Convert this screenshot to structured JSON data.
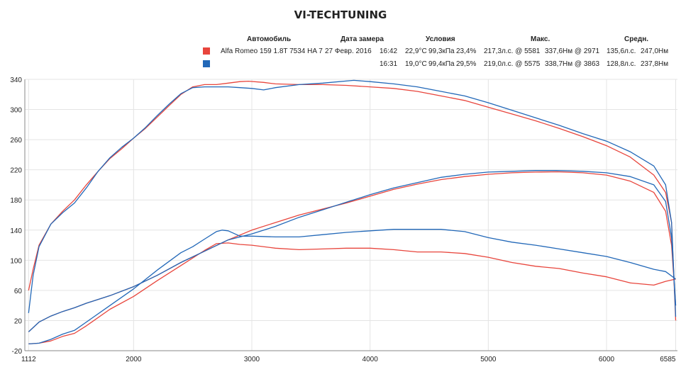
{
  "title": "VI-TECHTUNING",
  "legend": {
    "headers": {
      "car": "Автомобиль",
      "date": "Дата замера",
      "conditions": "Условия",
      "max": "Макс.",
      "avg": "Средн."
    },
    "rows": [
      {
        "color": "#e8453c",
        "car": "Alfa Romeo 159 1.8T 7534 HA 7",
        "date": "27 Февр. 2016",
        "time": "16:42",
        "temp": "22,9°C",
        "pressure": "99,3кПа",
        "humidity": "23,4%",
        "max_power": "217,3л.с. @ 5581",
        "max_torque": "337,6Нм @ 2971",
        "avg_power": "135,6л.с.",
        "avg_torque": "247,0Нм"
      },
      {
        "color": "#2268b8",
        "car": "",
        "date": "",
        "time": "16:31",
        "temp": "19,0°C",
        "pressure": "99,4кПа",
        "humidity": "29,5%",
        "max_power": "219,0л.с. @ 5575",
        "max_torque": "338,7Нм @ 3863",
        "avg_power": "128,8л.с.",
        "avg_torque": "237,8Нм"
      }
    ]
  },
  "chart_data": {
    "type": "line",
    "xlabel": "",
    "ylabel": "",
    "xlim": [
      1080,
      6600
    ],
    "ylim": [
      -20,
      340
    ],
    "xticks": [
      1112,
      2000,
      3000,
      4000,
      5000,
      6000,
      6585
    ],
    "yticks": [
      -20,
      20,
      60,
      100,
      140,
      180,
      220,
      260,
      300,
      340
    ],
    "grid": true,
    "series": [
      {
        "color": "#e8453c",
        "x": [
          1112,
          1150,
          1200,
          1300,
          1400,
          1500,
          1600,
          1700,
          1800,
          1900,
          2000,
          2100,
          2200,
          2300,
          2400,
          2500,
          2600,
          2700,
          2800,
          2900,
          2971,
          3100,
          3200,
          3400,
          3600,
          3800,
          4000,
          4200,
          4400,
          4600,
          4800,
          5000,
          5200,
          5400,
          5600,
          5800,
          6000,
          6200,
          6400,
          6500,
          6550,
          6585
        ],
        "values": [
          60,
          88,
          120,
          148,
          165,
          180,
          200,
          218,
          235,
          248,
          262,
          275,
          290,
          305,
          320,
          330,
          333,
          333,
          335,
          337,
          337.6,
          336,
          334,
          333,
          333,
          332,
          330,
          328,
          324,
          318,
          312,
          303,
          294,
          285,
          275,
          264,
          252,
          237,
          213,
          190,
          150,
          20
        ]
      },
      {
        "color": "#e8453c",
        "x": [
          1112,
          1200,
          1300,
          1400,
          1500,
          1600,
          1800,
          2000,
          2200,
          2400,
          2600,
          2800,
          3000,
          3200,
          3400,
          3600,
          3800,
          4000,
          4200,
          4400,
          4600,
          4800,
          5000,
          5200,
          5400,
          5581,
          5800,
          6000,
          6200,
          6400,
          6500,
          6550,
          6585
        ],
        "values": [
          5,
          18,
          26,
          32,
          37,
          43,
          53,
          65,
          80,
          97,
          112,
          127,
          140,
          150,
          160,
          168,
          176,
          185,
          194,
          201,
          207,
          211,
          214,
          216,
          217,
          217.3,
          216,
          213,
          205,
          190,
          165,
          120,
          40
        ]
      },
      {
        "color": "#e8453c",
        "x": [
          1112,
          1200,
          1300,
          1400,
          1500,
          1600,
          1800,
          2000,
          2200,
          2400,
          2600,
          2700,
          2800,
          2900,
          3000,
          3200,
          3400,
          3600,
          3800,
          4000,
          4200,
          4400,
          4600,
          4800,
          5000,
          5200,
          5400,
          5600,
          5800,
          6000,
          6200,
          6400,
          6500,
          6585
        ],
        "values": [
          -11,
          -10,
          -7,
          -1,
          3,
          13,
          35,
          52,
          73,
          93,
          113,
          122,
          123,
          121,
          120,
          116,
          114,
          115,
          116,
          116,
          114,
          111,
          111,
          109,
          104,
          97,
          92,
          89,
          83,
          78,
          70,
          67,
          72,
          75
        ]
      },
      {
        "color": "#2268b8",
        "x": [
          1112,
          1150,
          1200,
          1300,
          1400,
          1500,
          1600,
          1700,
          1800,
          1900,
          2000,
          2100,
          2200,
          2300,
          2400,
          2500,
          2600,
          2700,
          2800,
          2900,
          3000,
          3100,
          3200,
          3400,
          3600,
          3863,
          4000,
          4200,
          4400,
          4600,
          4800,
          5000,
          5200,
          5400,
          5600,
          5800,
          6000,
          6200,
          6400,
          6500,
          6550,
          6585
        ],
        "values": [
          30,
          80,
          118,
          148,
          163,
          176,
          196,
          218,
          236,
          250,
          262,
          276,
          292,
          307,
          321,
          329,
          330,
          330,
          330,
          329,
          328,
          326,
          329,
          333,
          335,
          338.7,
          337,
          334,
          330,
          324,
          318,
          309,
          299,
          289,
          279,
          268,
          258,
          244,
          225,
          200,
          150,
          25
        ]
      },
      {
        "color": "#2268b8",
        "x": [
          1112,
          1200,
          1300,
          1400,
          1500,
          1600,
          1800,
          2000,
          2200,
          2400,
          2600,
          2800,
          3000,
          3200,
          3400,
          3600,
          3800,
          4000,
          4200,
          4400,
          4600,
          4800,
          5000,
          5200,
          5400,
          5575,
          5800,
          6000,
          6200,
          6400,
          6500,
          6550,
          6585
        ],
        "values": [
          5,
          18,
          26,
          32,
          37,
          43,
          53,
          65,
          80,
          97,
          112,
          127,
          135,
          145,
          157,
          167,
          177,
          187,
          196,
          203,
          210,
          214,
          217,
          218,
          219,
          219,
          218,
          216,
          211,
          200,
          178,
          130,
          40
        ]
      },
      {
        "color": "#2268b8",
        "x": [
          1112,
          1200,
          1300,
          1400,
          1500,
          1600,
          1800,
          2000,
          2200,
          2400,
          2500,
          2600,
          2700,
          2750,
          2800,
          2900,
          3000,
          3200,
          3400,
          3600,
          3800,
          4000,
          4200,
          4400,
          4600,
          4800,
          5000,
          5200,
          5400,
          5600,
          5800,
          6000,
          6200,
          6400,
          6500,
          6585
        ],
        "values": [
          -11,
          -10,
          -5,
          2,
          7,
          18,
          40,
          62,
          87,
          110,
          118,
          128,
          138,
          140,
          139,
          132,
          132,
          131,
          131,
          134,
          137,
          139,
          141,
          141,
          141,
          138,
          130,
          124,
          120,
          115,
          110,
          105,
          97,
          88,
          85,
          75
        ]
      }
    ]
  }
}
